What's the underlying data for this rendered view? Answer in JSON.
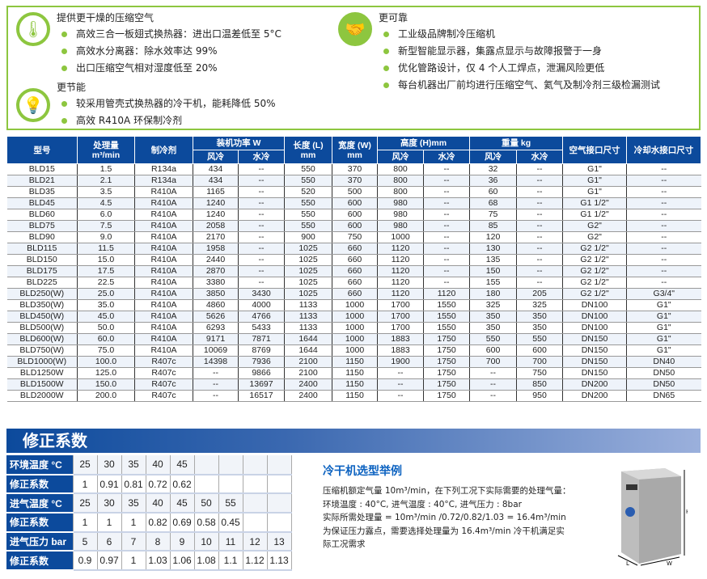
{
  "features": {
    "dry": {
      "title": "提供更干燥的压缩空气",
      "icon": "thermometer-icon",
      "items": [
        "高效三合一板翅式换热器：进出口温差低至 5°C",
        "高效水分离器：除水效率达 99%",
        "出口压缩空气相对湿度低至 20%"
      ]
    },
    "energy": {
      "title": "更节能",
      "icon": "lightbulb-icon",
      "items": [
        "较采用管壳式换热器的冷干机，能耗降低 50%",
        "高效 R410A 环保制冷剂"
      ]
    },
    "reliable": {
      "title": "更可靠",
      "icon": "handshake-icon",
      "items": [
        "工业级品牌制冷压缩机",
        "新型智能显示器，集露点显示与故障报警于一身",
        "优化管路设计，仅 4 个人工焊点，泄漏风险更低",
        "每台机器出厂前均进行压缩空气、氦气及制冷剂三级检漏测试"
      ]
    }
  },
  "spec": {
    "headers": {
      "model": "型号",
      "flow": "处理量",
      "flow_unit": "m³/min",
      "refrigerant": "制冷剂",
      "power": "装机功率 W",
      "length": "长度 (L)",
      "width": "宽度 (W)",
      "mm": "mm",
      "height": "高度 (H)mm",
      "weight": "重量 kg",
      "air": "空气接口尺寸",
      "water": "冷却水接口尺寸",
      "air_cooled": "风冷",
      "water_cooled": "水冷"
    },
    "rows": [
      [
        "BLD15",
        "1.5",
        "R134a",
        "434",
        "--",
        "550",
        "370",
        "800",
        "--",
        "32",
        "--",
        "G1\"",
        "--"
      ],
      [
        "BLD21",
        "2.1",
        "R134a",
        "434",
        "--",
        "550",
        "370",
        "800",
        "--",
        "36",
        "--",
        "G1\"",
        "--"
      ],
      [
        "BLD35",
        "3.5",
        "R410A",
        "1165",
        "--",
        "520",
        "500",
        "800",
        "--",
        "60",
        "--",
        "G1\"",
        "--"
      ],
      [
        "BLD45",
        "4.5",
        "R410A",
        "1240",
        "--",
        "550",
        "600",
        "980",
        "--",
        "68",
        "--",
        "G1 1/2\"",
        "--"
      ],
      [
        "BLD60",
        "6.0",
        "R410A",
        "1240",
        "--",
        "550",
        "600",
        "980",
        "--",
        "75",
        "--",
        "G1 1/2\"",
        "--"
      ],
      [
        "BLD75",
        "7.5",
        "R410A",
        "2058",
        "--",
        "550",
        "600",
        "980",
        "--",
        "85",
        "--",
        "G2\"",
        "--"
      ],
      [
        "BLD90",
        "9.0",
        "R410A",
        "2170",
        "--",
        "900",
        "750",
        "1000",
        "--",
        "120",
        "--",
        "G2\"",
        "--"
      ],
      [
        "BLD115",
        "11.5",
        "R410A",
        "1958",
        "--",
        "1025",
        "660",
        "1120",
        "--",
        "130",
        "--",
        "G2 1/2\"",
        "--"
      ],
      [
        "BLD150",
        "15.0",
        "R410A",
        "2440",
        "--",
        "1025",
        "660",
        "1120",
        "--",
        "135",
        "--",
        "G2 1/2\"",
        "--"
      ],
      [
        "BLD175",
        "17.5",
        "R410A",
        "2870",
        "--",
        "1025",
        "660",
        "1120",
        "--",
        "150",
        "--",
        "G2 1/2\"",
        "--"
      ],
      [
        "BLD225",
        "22.5",
        "R410A",
        "3380",
        "--",
        "1025",
        "660",
        "1120",
        "--",
        "155",
        "--",
        "G2 1/2\"",
        "--"
      ],
      [
        "BLD250(W)",
        "25.0",
        "R410A",
        "3850",
        "3430",
        "1025",
        "660",
        "1120",
        "1120",
        "180",
        "205",
        "G2 1/2\"",
        "G3/4\""
      ],
      [
        "BLD350(W)",
        "35.0",
        "R410A",
        "4860",
        "4000",
        "1133",
        "1000",
        "1700",
        "1550",
        "325",
        "325",
        "DN100",
        "G1\""
      ],
      [
        "BLD450(W)",
        "45.0",
        "R410A",
        "5626",
        "4766",
        "1133",
        "1000",
        "1700",
        "1550",
        "350",
        "350",
        "DN100",
        "G1\""
      ],
      [
        "BLD500(W)",
        "50.0",
        "R410A",
        "6293",
        "5433",
        "1133",
        "1000",
        "1700",
        "1550",
        "350",
        "350",
        "DN100",
        "G1\""
      ],
      [
        "BLD600(W)",
        "60.0",
        "R410A",
        "9171",
        "7871",
        "1644",
        "1000",
        "1883",
        "1750",
        "550",
        "550",
        "DN150",
        "G1\""
      ],
      [
        "BLD750(W)",
        "75.0",
        "R410A",
        "10069",
        "8769",
        "1644",
        "1000",
        "1883",
        "1750",
        "600",
        "600",
        "DN150",
        "G1\""
      ],
      [
        "BLD1000(W)",
        "100.0",
        "R407c",
        "14398",
        "7936",
        "2100",
        "1150",
        "1900",
        "1750",
        "700",
        "700",
        "DN150",
        "DN40"
      ],
      [
        "BLD1250W",
        "125.0",
        "R407c",
        "--",
        "9866",
        "2100",
        "1150",
        "--",
        "1750",
        "--",
        "750",
        "DN150",
        "DN50"
      ],
      [
        "BLD1500W",
        "150.0",
        "R407c",
        "--",
        "13697",
        "2400",
        "1150",
        "--",
        "1750",
        "--",
        "850",
        "DN200",
        "DN50"
      ],
      [
        "BLD2000W",
        "200.0",
        "R407c",
        "--",
        "16517",
        "2400",
        "1150",
        "--",
        "1750",
        "--",
        "950",
        "DN200",
        "DN65"
      ]
    ]
  },
  "correction": {
    "title": "修正系数",
    "rows": [
      {
        "label": "环境温度 °C",
        "values": [
          "25",
          "30",
          "35",
          "40",
          "45"
        ]
      },
      {
        "label": "修正系数",
        "values": [
          "1",
          "0.91",
          "0.81",
          "0.72",
          "0.62"
        ]
      },
      {
        "label": "进气温度 °C",
        "values": [
          "25",
          "30",
          "35",
          "40",
          "45",
          "50",
          "55"
        ]
      },
      {
        "label": "修正系数",
        "values": [
          "1",
          "1",
          "1",
          "0.82",
          "0.69",
          "0.58",
          "0.45"
        ]
      },
      {
        "label": "进气压力 bar",
        "values": [
          "5",
          "6",
          "7",
          "8",
          "9",
          "10",
          "11",
          "12",
          "13"
        ]
      },
      {
        "label": "修正系数",
        "values": [
          "0.9",
          "0.97",
          "1",
          "1.03",
          "1.06",
          "1.08",
          "1.1",
          "1.12",
          "1.13"
        ]
      }
    ]
  },
  "example": {
    "title": "冷干机选型举例",
    "lines": [
      "压缩机额定气量 10m³/min，在下列工况下实际需要的处理气量：",
      "环境温度 : 40°C, 进气温度 : 40°C, 进气压力 : 8bar",
      "实际所需处理量 = 10m³/min /0.72/0.82/1.03 = 16.4m³/min",
      "为保证压力露点，需要选择处理量为 16.4m³/min 冷干机满足实",
      "际工况需求"
    ]
  },
  "product": {
    "dim_h": "H",
    "dim_l": "L",
    "dim_w": "W"
  },
  "colors": {
    "green": "#8dc63f",
    "blue": "#0c4a9c"
  }
}
